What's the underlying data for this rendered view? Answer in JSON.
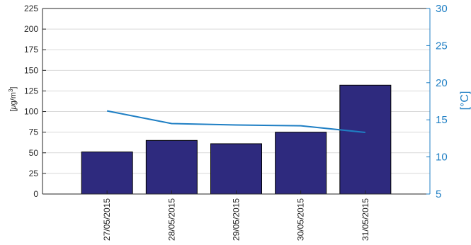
{
  "colors": {
    "bar_fill": "#2e2a7e",
    "bar_stroke": "#000000",
    "line": "#1f7fc4",
    "right_axis": "#1f7fc4",
    "left_axis": "#262626",
    "grid": "#d9d9d9"
  },
  "chart_data": {
    "type": "bar",
    "categories": [
      "27/05/2015",
      "28/05/2015",
      "29/05/2015",
      "30/05/2015",
      "31/05/2015"
    ],
    "series": [
      {
        "type": "bar",
        "axis": "left",
        "values": [
          51,
          65,
          61,
          75,
          132
        ]
      },
      {
        "type": "line",
        "axis": "right",
        "values": [
          16.2,
          14.5,
          14.3,
          14.2,
          13.3
        ]
      }
    ],
    "left_axis": {
      "label": "[μg/m3]",
      "ylim": [
        0,
        225
      ],
      "ticks": [
        "0",
        "25",
        "50",
        "75",
        "100",
        "125",
        "150",
        "175",
        "200",
        "225"
      ]
    },
    "right_axis": {
      "label": "[°C]",
      "ylim": [
        5,
        30
      ],
      "ticks": [
        "5",
        "10",
        "15",
        "20",
        "25",
        "30"
      ]
    },
    "grid": true
  }
}
